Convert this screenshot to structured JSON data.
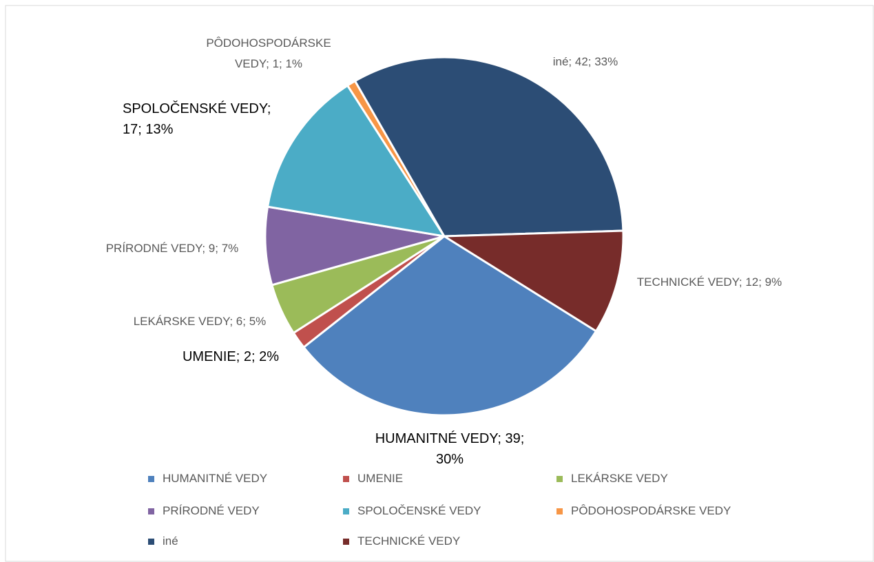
{
  "chart_data": {
    "type": "pie",
    "categories": [
      "HUMANITNÉ VEDY",
      "UMENIE",
      "LEKÁRSKE VEDY",
      "PRÍRODNÉ VEDY",
      "SPOLOČENSKÉ VEDY",
      "PÔDOHOSPODÁRSKE VEDY",
      "iné",
      "TECHNICKÉ VEDY"
    ],
    "values": [
      39,
      2,
      6,
      9,
      17,
      1,
      42,
      12
    ],
    "value_labels": [
      "HUMANITNÉ VEDY; 39; 30%",
      "UMENIE; 2; 2%",
      "LEKÁRSKE VEDY; 6; 5%",
      "PRÍRODNÉ VEDY; 9; 7%",
      "SPOLOČENSKÉ VEDY; 17; 13%",
      "PÔDOHOSPODÁRSKE VEDY; 1; 1%",
      "iné; 42; 33%",
      "TECHNICKÉ VEDY; 12; 9%"
    ],
    "colors": [
      "#4f81bd",
      "#c0504d",
      "#9bbb59",
      "#8064a2",
      "#4bacc6",
      "#f79646",
      "#2c4d75",
      "#772c2a"
    ],
    "start_angle": 122,
    "legend": "bottom"
  }
}
